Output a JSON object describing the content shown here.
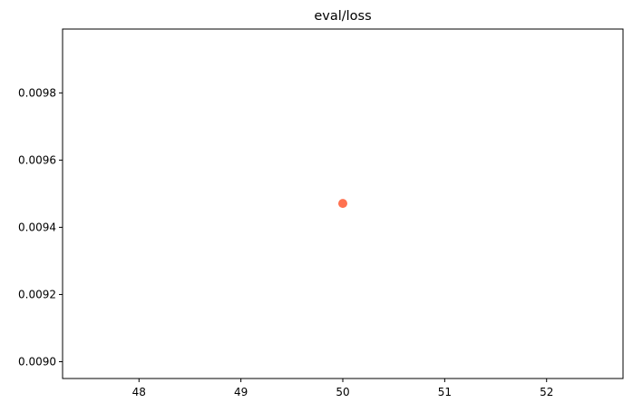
{
  "chart_data": {
    "type": "scatter",
    "title": "eval/loss",
    "xlabel": "",
    "ylabel": "",
    "xlim": [
      47.25,
      52.75
    ],
    "ylim": [
      0.00895,
      0.00999
    ],
    "x_ticks": [
      48,
      49,
      50,
      51,
      52
    ],
    "x_tick_labels": [
      "48",
      "49",
      "50",
      "51",
      "52"
    ],
    "y_ticks": [
      0.009,
      0.0092,
      0.0094,
      0.0096,
      0.0098
    ],
    "y_tick_labels": [
      "0.0090",
      "0.0092",
      "0.0094",
      "0.0096",
      "0.0098"
    ],
    "grid": false,
    "legend": "none",
    "points": [
      {
        "x": 50,
        "y": 0.009471
      }
    ],
    "marker_color": "#ff7150"
  }
}
